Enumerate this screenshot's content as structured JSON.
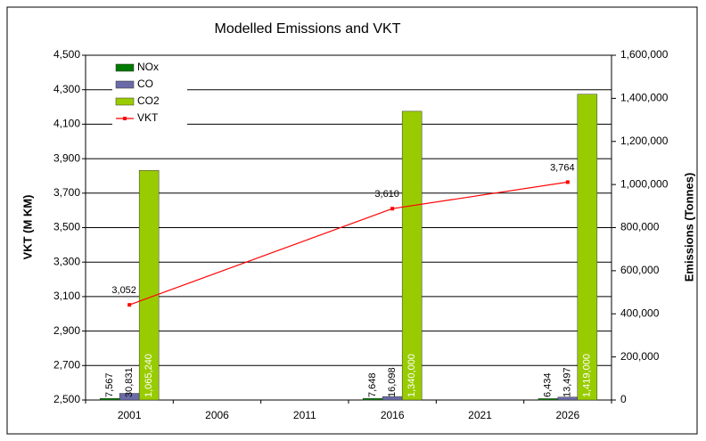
{
  "chart_data": {
    "type": "bar",
    "title": "Modelled Emissions and VKT",
    "ylabel": "VKT (M KM)",
    "y2label": "Emissions (Tonnes)",
    "categories": [
      "2001",
      "2006",
      "2011",
      "2016",
      "2021",
      "2026"
    ],
    "ylim": [
      2500,
      4500
    ],
    "yticks": [
      {
        "value": 2500,
        "label": "2,500"
      },
      {
        "value": 2700,
        "label": "2,700"
      },
      {
        "value": 2900,
        "label": "2,900"
      },
      {
        "value": 3100,
        "label": "3,100"
      },
      {
        "value": 3300,
        "label": "3,300"
      },
      {
        "value": 3500,
        "label": "3,500"
      },
      {
        "value": 3700,
        "label": "3,700"
      },
      {
        "value": 3900,
        "label": "3,900"
      },
      {
        "value": 4100,
        "label": "4,100"
      },
      {
        "value": 4300,
        "label": "4,300"
      },
      {
        "value": 4500,
        "label": "4,500"
      }
    ],
    "y2lim": [
      0,
      1600000
    ],
    "y2ticks": [
      0,
      {
        "value": 200000,
        "label": "200,000"
      },
      {
        "value": 400000,
        "label": "400,000"
      },
      {
        "value": 600000,
        "label": "600,000"
      },
      {
        "value": 800000,
        "label": "800,000"
      },
      {
        "value": 1000000,
        "label": "1,000,000"
      },
      {
        "value": 1200000,
        "label": "1,200,000"
      },
      {
        "value": 1400000,
        "label": "1,400,000"
      },
      {
        "value": 1600000,
        "label": "1,600,000"
      }
    ],
    "grid": true,
    "legend": "upper left",
    "span_gaps": true,
    "series": [
      {
        "name": "NOx",
        "type": "bar",
        "axis": "y2",
        "color": "#007a00",
        "values": [
          7567,
          null,
          null,
          7648,
          null,
          6434
        ],
        "value_labels": [
          "7,567",
          null,
          null,
          "7,648",
          null,
          "6,434"
        ]
      },
      {
        "name": "CO",
        "type": "bar",
        "axis": "y2",
        "color": "#6b6ba8",
        "values": [
          30831,
          null,
          null,
          16098,
          null,
          13497
        ],
        "value_labels": [
          "30,831",
          null,
          null,
          "16,098",
          null,
          "13,497"
        ]
      },
      {
        "name": "CO2",
        "type": "bar",
        "axis": "y2",
        "color": "#99cc00",
        "values": [
          1065240,
          null,
          null,
          1340000,
          null,
          1419000
        ],
        "value_labels": [
          "1,065,240",
          null,
          null,
          "1,340,000",
          null,
          "1,419,000"
        ]
      },
      {
        "name": "VKT",
        "type": "line",
        "color": "#ff0000",
        "values": [
          3052,
          null,
          null,
          3610,
          null,
          3764
        ],
        "value_labels": [
          "3,052",
          null,
          null,
          "3,610",
          null,
          "3,764"
        ]
      }
    ]
  }
}
